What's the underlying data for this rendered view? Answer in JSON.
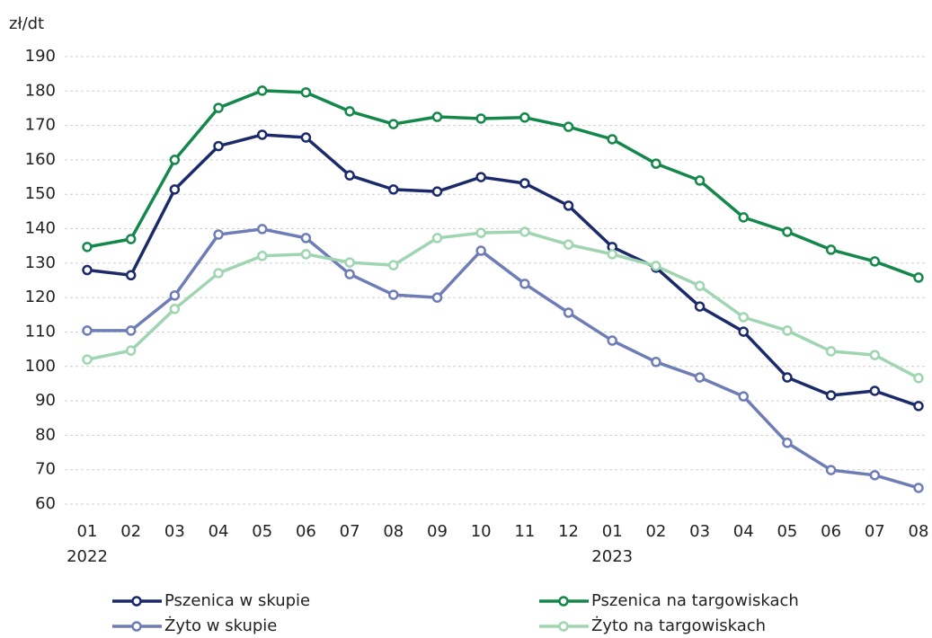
{
  "chart_data": {
    "type": "line",
    "y_label": "zł/dt",
    "categories": [
      "01",
      "02",
      "03",
      "04",
      "05",
      "06",
      "07",
      "08",
      "09",
      "10",
      "11",
      "12",
      "01",
      "02",
      "03",
      "04",
      "05",
      "06",
      "07",
      "08"
    ],
    "years": [
      "2022",
      null,
      null,
      null,
      null,
      null,
      null,
      null,
      null,
      null,
      null,
      null,
      "2023",
      null,
      null,
      null,
      null,
      null,
      null,
      null
    ],
    "series": [
      {
        "name": "Pszenica w skupie",
        "color": "#1b2a6b",
        "values": [
          128,
          126.5,
          151.4,
          164,
          167.3,
          166.5,
          155.5,
          151.4,
          150.8,
          155,
          153.2,
          146.7,
          134.7,
          128.7,
          117.4,
          110.1,
          96.8,
          91.6,
          92.9,
          88.5
        ]
      },
      {
        "name": "Pszenica na targowiskach",
        "color": "#14874a",
        "values": [
          134.7,
          137,
          160,
          175.1,
          180.1,
          179.6,
          174.1,
          170.4,
          172.5,
          172,
          172.3,
          169.6,
          166,
          158.9,
          154,
          143.3,
          139.1,
          133.9,
          130.5,
          125.8
        ]
      },
      {
        "name": "Żyto w skupie",
        "color": "#6e7db6",
        "values": [
          110.4,
          110.4,
          120.6,
          138.3,
          139.9,
          137.3,
          126.8,
          120.8,
          120,
          133.6,
          124,
          115.6,
          107.5,
          101.3,
          96.8,
          91.3,
          77.8,
          69.9,
          68.4,
          64.7
        ]
      },
      {
        "name": "Żyto na targowiskach",
        "color": "#9fd5b1",
        "values": [
          102,
          104.6,
          116.7,
          127.1,
          132.1,
          132.6,
          130.2,
          129.4,
          137.3,
          138.8,
          139.1,
          135.4,
          132.6,
          129.2,
          123.4,
          114.3,
          110.4,
          104.4,
          103.3,
          96.6
        ]
      }
    ],
    "ylim": [
      60,
      190
    ],
    "yticks": [
      60,
      70,
      80,
      90,
      100,
      110,
      120,
      130,
      140,
      150,
      160,
      170,
      180,
      190
    ],
    "grid": true,
    "legend": "bottom"
  }
}
